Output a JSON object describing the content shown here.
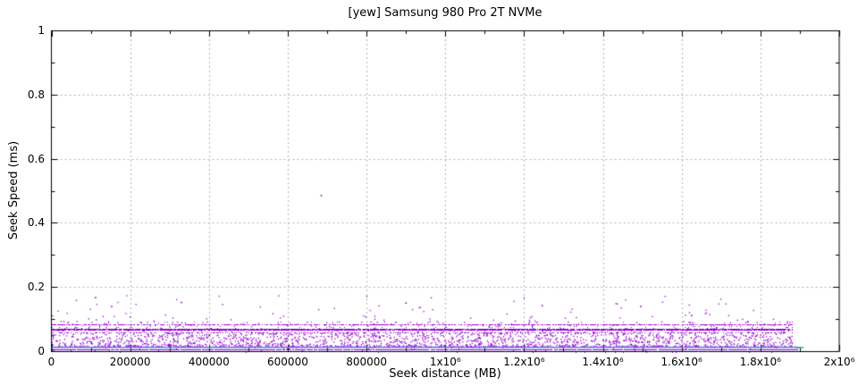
{
  "chart_data": {
    "type": "scatter",
    "title": "[yew] Samsung 980 Pro 2T NVMe",
    "xlabel": "Seek distance (MB)",
    "ylabel": "Seek Speed (ms)",
    "xlim": [
      0,
      2000000
    ],
    "ylim": [
      0,
      1
    ],
    "x_ticks": {
      "values": [
        0,
        200000,
        400000,
        600000,
        800000,
        1000000,
        1200000,
        1400000,
        1600000,
        1800000,
        2000000
      ],
      "labels": [
        "0",
        "200000",
        "400000",
        "600000",
        "800000",
        "1x10⁶",
        "1.2x10⁶",
        "1.4x10⁶",
        "1.6x10⁶",
        "1.8x10⁶",
        "2x10⁶"
      ]
    },
    "y_ticks": {
      "values": [
        0,
        0.2,
        0.4,
        0.6,
        0.8,
        1
      ],
      "labels": [
        "0",
        "0.2",
        "0.4",
        "0.6",
        "0.8",
        "1"
      ]
    },
    "minor_x_step": 100000,
    "minor_y_step": 0.1,
    "grid": "dashed",
    "grid_color": "#b3b3b3",
    "frame_color": "#000000",
    "background_color": "#ffffff",
    "point_color": "#9400d3",
    "line_color": "#5580dd",
    "seed": 7,
    "series": [
      {
        "name": "band-0.083ms",
        "kind": "dotted-band",
        "color": "#9400d3",
        "y": 0.083,
        "rows": 1,
        "density": 0.68,
        "halo": 0.1,
        "x_range": [
          0,
          1880000
        ]
      },
      {
        "name": "band-0.067ms",
        "kind": "dotted-band",
        "color": "#9400d3",
        "y": 0.067,
        "rows": 2,
        "density": 0.88,
        "halo": 0.14,
        "x_range": [
          0,
          1880000
        ]
      },
      {
        "name": "band-0.059ms",
        "kind": "dotted-band",
        "color": "#9400d3",
        "y": 0.059,
        "rows": 1,
        "density": 0.4,
        "halo": 0.06,
        "x_range": [
          0,
          1880000
        ]
      },
      {
        "name": "low-cloud",
        "kind": "cloud",
        "color": "#9400d3",
        "x_range": [
          0,
          1880000
        ],
        "y_range": [
          0.015,
          0.058
        ],
        "count": 1500,
        "skew": 1.5
      },
      {
        "name": "gap-cloud",
        "kind": "cloud",
        "color": "#9400d3",
        "x_range": [
          0,
          1880000
        ],
        "y_range": [
          0.03,
          0.095
        ],
        "count": 260,
        "skew": 1.2
      },
      {
        "name": "high-cloud",
        "kind": "cloud",
        "color": "#9400d3",
        "x_range": [
          0,
          1860000
        ],
        "y_range": [
          0.09,
          0.175
        ],
        "count": 110,
        "skew": 2.2
      },
      {
        "name": "floor-band",
        "kind": "dotted-band",
        "color": "#9400d3",
        "alpha": 0.5,
        "y": 0.0155,
        "rows": 1,
        "density": 0.5,
        "halo": 0,
        "x_range": [
          0,
          1895000
        ]
      },
      {
        "name": "blue-line",
        "kind": "line",
        "color": "#5580dd",
        "y": 0.0115,
        "width": 1.5,
        "x_range": [
          0,
          1902000
        ]
      },
      {
        "name": "teal-cap",
        "kind": "line",
        "color": "#2fb3a3",
        "y": 0.0115,
        "width": 1.5,
        "x_range": [
          1893000,
          1910000
        ]
      },
      {
        "name": "base-band",
        "kind": "dotted-band",
        "color": "#9400d3",
        "y": 0.006,
        "rows": 1,
        "density": 0.95,
        "halo": 0.08,
        "x_range": [
          0,
          1895000
        ]
      },
      {
        "name": "outliers",
        "kind": "points",
        "color": "#9400d3",
        "points": [
          [
            112000,
            0.167
          ],
          [
            153000,
            0.139
          ],
          [
            330000,
            0.152
          ],
          [
            685000,
            0.485
          ],
          [
            900000,
            0.15
          ],
          [
            1246000,
            0.142
          ],
          [
            1496000,
            0.139
          ],
          [
            1625000,
            0.111
          ]
        ]
      }
    ]
  }
}
